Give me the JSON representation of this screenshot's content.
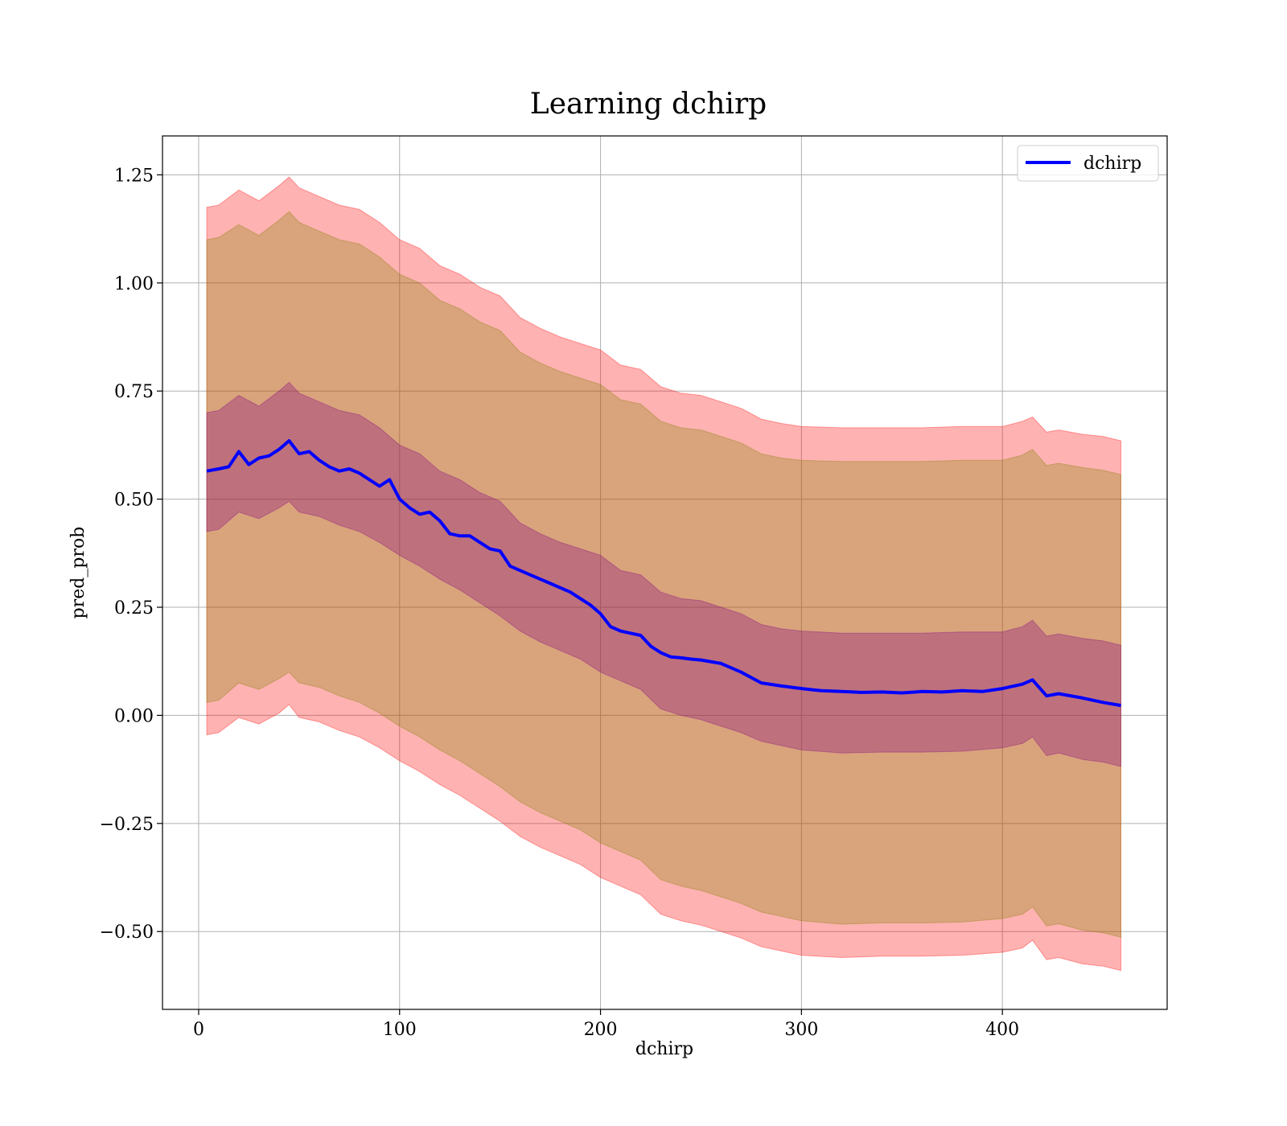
{
  "chart_data": {
    "type": "line",
    "title": "Learning dchirp",
    "xlabel": "dchirp",
    "ylabel": "pred_prob",
    "xlim": [
      -18,
      482
    ],
    "ylim": [
      -0.68,
      1.34
    ],
    "xticks": [
      0,
      100,
      200,
      300,
      400
    ],
    "xtick_labels": [
      "0",
      "100",
      "200",
      "300",
      "400"
    ],
    "yticks": [
      -0.5,
      -0.25,
      0.0,
      0.25,
      0.5,
      0.75,
      1.0,
      1.25
    ],
    "ytick_labels": [
      "−0.50",
      "−0.25",
      "0.00",
      "0.25",
      "0.50",
      "0.75",
      "1.00",
      "1.25"
    ],
    "grid": true,
    "legend_position": "top-right",
    "series": [
      {
        "name": "dchirp",
        "color": "#0000ff",
        "x": [
          4,
          10,
          15,
          20,
          25,
          30,
          35,
          40,
          45,
          50,
          55,
          60,
          65,
          70,
          75,
          80,
          85,
          90,
          95,
          100,
          105,
          110,
          115,
          120,
          125,
          130,
          135,
          140,
          145,
          150,
          155,
          160,
          165,
          170,
          175,
          180,
          185,
          190,
          195,
          200,
          205,
          210,
          215,
          220,
          225,
          230,
          235,
          240,
          245,
          250,
          260,
          270,
          280,
          290,
          300,
          310,
          320,
          330,
          340,
          350,
          360,
          370,
          380,
          390,
          400,
          410,
          415,
          422,
          428,
          440,
          450,
          459
        ],
        "values": [
          0.565,
          0.57,
          0.575,
          0.61,
          0.58,
          0.595,
          0.6,
          0.615,
          0.635,
          0.605,
          0.61,
          0.59,
          0.575,
          0.565,
          0.57,
          0.56,
          0.545,
          0.53,
          0.545,
          0.5,
          0.48,
          0.465,
          0.47,
          0.45,
          0.42,
          0.415,
          0.415,
          0.4,
          0.385,
          0.38,
          0.345,
          0.335,
          0.325,
          0.315,
          0.305,
          0.295,
          0.285,
          0.27,
          0.255,
          0.235,
          0.205,
          0.195,
          0.19,
          0.185,
          0.16,
          0.145,
          0.135,
          0.133,
          0.13,
          0.128,
          0.12,
          0.1,
          0.075,
          0.068,
          0.062,
          0.057,
          0.055,
          0.053,
          0.054,
          0.052,
          0.055,
          0.054,
          0.057,
          0.055,
          0.062,
          0.072,
          0.082,
          0.045,
          0.05,
          0.04,
          0.03,
          0.023
        ]
      }
    ],
    "bands": [
      {
        "color": "#ff0000",
        "opacity": 0.3,
        "x": [
          4,
          10,
          20,
          30,
          40,
          45,
          50,
          60,
          70,
          80,
          90,
          100,
          110,
          120,
          130,
          140,
          150,
          160,
          170,
          180,
          190,
          200,
          210,
          220,
          230,
          240,
          250,
          260,
          270,
          280,
          290,
          300,
          320,
          340,
          360,
          380,
          400,
          410,
          415,
          422,
          428,
          440,
          450,
          459
        ],
        "upper": [
          1.175,
          1.18,
          1.215,
          1.19,
          1.225,
          1.245,
          1.22,
          1.2,
          1.18,
          1.17,
          1.14,
          1.1,
          1.08,
          1.04,
          1.02,
          0.99,
          0.97,
          0.92,
          0.895,
          0.875,
          0.86,
          0.845,
          0.81,
          0.8,
          0.76,
          0.745,
          0.74,
          0.725,
          0.71,
          0.685,
          0.675,
          0.668,
          0.665,
          0.665,
          0.665,
          0.668,
          0.668,
          0.68,
          0.69,
          0.655,
          0.66,
          0.65,
          0.645,
          0.635
        ],
        "lower": [
          -0.045,
          -0.04,
          -0.005,
          -0.02,
          0.005,
          0.025,
          -0.005,
          -0.015,
          -0.035,
          -0.05,
          -0.075,
          -0.105,
          -0.13,
          -0.16,
          -0.185,
          -0.215,
          -0.245,
          -0.28,
          -0.305,
          -0.325,
          -0.345,
          -0.375,
          -0.395,
          -0.415,
          -0.46,
          -0.475,
          -0.485,
          -0.5,
          -0.515,
          -0.535,
          -0.545,
          -0.555,
          -0.56,
          -0.557,
          -0.557,
          -0.555,
          -0.548,
          -0.538,
          -0.52,
          -0.565,
          -0.56,
          -0.575,
          -0.58,
          -0.59
        ]
      },
      {
        "color": "#808000",
        "opacity": 0.3,
        "x": [
          4,
          10,
          20,
          30,
          40,
          45,
          50,
          60,
          70,
          80,
          90,
          100,
          110,
          120,
          130,
          140,
          150,
          160,
          170,
          180,
          190,
          200,
          210,
          220,
          230,
          240,
          250,
          260,
          270,
          280,
          290,
          300,
          320,
          340,
          360,
          380,
          400,
          410,
          415,
          422,
          428,
          440,
          450,
          459
        ],
        "upper": [
          1.1,
          1.105,
          1.135,
          1.11,
          1.145,
          1.165,
          1.14,
          1.12,
          1.1,
          1.09,
          1.06,
          1.02,
          1.0,
          0.96,
          0.94,
          0.91,
          0.89,
          0.84,
          0.815,
          0.795,
          0.78,
          0.765,
          0.73,
          0.72,
          0.68,
          0.665,
          0.66,
          0.645,
          0.63,
          0.605,
          0.595,
          0.59,
          0.587,
          0.587,
          0.587,
          0.59,
          0.59,
          0.602,
          0.615,
          0.578,
          0.583,
          0.573,
          0.567,
          0.557
        ],
        "lower": [
          0.03,
          0.035,
          0.075,
          0.06,
          0.085,
          0.1,
          0.075,
          0.065,
          0.045,
          0.03,
          0.005,
          -0.025,
          -0.05,
          -0.08,
          -0.105,
          -0.135,
          -0.165,
          -0.2,
          -0.225,
          -0.245,
          -0.265,
          -0.295,
          -0.315,
          -0.335,
          -0.38,
          -0.395,
          -0.405,
          -0.42,
          -0.435,
          -0.455,
          -0.465,
          -0.475,
          -0.483,
          -0.48,
          -0.48,
          -0.478,
          -0.47,
          -0.46,
          -0.443,
          -0.487,
          -0.482,
          -0.497,
          -0.503,
          -0.513
        ]
      },
      {
        "color": "#800080",
        "opacity": 0.3,
        "x": [
          4,
          10,
          20,
          30,
          40,
          45,
          50,
          60,
          70,
          80,
          90,
          100,
          110,
          120,
          130,
          140,
          150,
          160,
          170,
          180,
          190,
          200,
          210,
          220,
          230,
          240,
          250,
          260,
          270,
          280,
          290,
          300,
          320,
          340,
          360,
          380,
          400,
          410,
          415,
          422,
          428,
          440,
          450,
          459
        ],
        "upper": [
          0.7,
          0.705,
          0.74,
          0.715,
          0.75,
          0.77,
          0.745,
          0.725,
          0.705,
          0.695,
          0.665,
          0.625,
          0.605,
          0.565,
          0.545,
          0.515,
          0.495,
          0.445,
          0.42,
          0.4,
          0.385,
          0.37,
          0.335,
          0.325,
          0.285,
          0.27,
          0.265,
          0.25,
          0.235,
          0.21,
          0.2,
          0.195,
          0.19,
          0.19,
          0.19,
          0.193,
          0.193,
          0.205,
          0.22,
          0.183,
          0.188,
          0.178,
          0.172,
          0.162
        ],
        "lower": [
          0.425,
          0.43,
          0.47,
          0.455,
          0.48,
          0.495,
          0.47,
          0.46,
          0.44,
          0.425,
          0.4,
          0.37,
          0.345,
          0.315,
          0.29,
          0.26,
          0.23,
          0.195,
          0.17,
          0.15,
          0.13,
          0.1,
          0.08,
          0.06,
          0.015,
          0.0,
          -0.01,
          -0.025,
          -0.04,
          -0.06,
          -0.07,
          -0.08,
          -0.087,
          -0.085,
          -0.085,
          -0.083,
          -0.075,
          -0.065,
          -0.05,
          -0.093,
          -0.087,
          -0.102,
          -0.108,
          -0.118
        ]
      }
    ]
  }
}
